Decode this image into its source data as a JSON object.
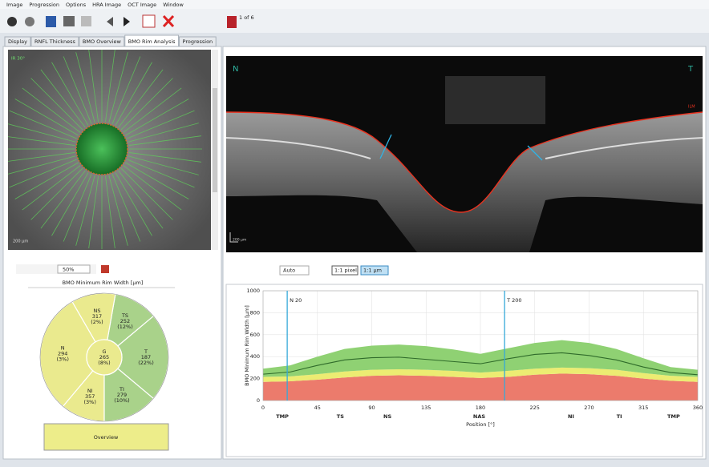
{
  "menu": [
    "Image",
    "Progression",
    "Options",
    "HRA Image",
    "OCT Image",
    "Window"
  ],
  "toolbar": {
    "page": "1 of 6"
  },
  "tabs": [
    "Display",
    "RNFL Thickness",
    "BMO Overview",
    "BMO Rim Analysis",
    "Progression"
  ],
  "active_tab": 3,
  "fundus": {
    "label": "IR 30°",
    "scale": "200 µm"
  },
  "fundus_zoom": "50%",
  "sectors": {
    "title": "BMO Minimum Rim Width [µm]",
    "items": [
      {
        "name": "T",
        "value": 187,
        "percentile_label": "(22%)",
        "color": "#a9d28a"
      },
      {
        "name": "TS",
        "value": 252,
        "percentile_label": "(12%)",
        "color": "#a9d28a"
      },
      {
        "name": "NS",
        "value": 317,
        "percentile_label": "(2%)",
        "color": "#eaea8e"
      },
      {
        "name": "N",
        "value": 294,
        "percentile_label": "(3%)",
        "color": "#eaea8e"
      },
      {
        "name": "NI",
        "value": 357,
        "percentile_label": "(3%)",
        "color": "#eaea8e"
      },
      {
        "name": "TI",
        "value": 279,
        "percentile_label": "(10%)",
        "color": "#a9d28a"
      }
    ],
    "global": {
      "name": "G",
      "value": 265,
      "percentile_label": "(8%)",
      "color": "#eaea8e"
    }
  },
  "overview_button": "Overview",
  "oct": {
    "nasal": "N",
    "temporal": "T",
    "layer": "ILM",
    "scale": "200 µm"
  },
  "oct_toolbar": {
    "zoom": "Auto",
    "pixel": "1:1 pixel",
    "micron": "1:1 µm"
  },
  "chart_data": {
    "type": "area",
    "ylabel": "BMO Minimum Rim Width [µm]",
    "xlabel": "Position [°]",
    "x": [
      0,
      22.5,
      45,
      67.5,
      90,
      112.5,
      135,
      157.5,
      180,
      202.5,
      225,
      247.5,
      270,
      292.5,
      315,
      337.5,
      360
    ],
    "xlim": [
      0,
      360
    ],
    "xticks": [
      0,
      45,
      90,
      135,
      180,
      225,
      270,
      315,
      360
    ],
    "ylim": [
      0,
      1000
    ],
    "yticks": [
      0,
      200,
      400,
      600,
      800,
      1000
    ],
    "grid": true,
    "series": [
      {
        "color": "#ec7b6c",
        "fill": true,
        "values": [
          170,
          175,
          190,
          210,
          225,
          230,
          225,
          215,
          205,
          215,
          235,
          245,
          240,
          225,
          200,
          180,
          170
        ]
      },
      {
        "color": "#ecec72",
        "fill": true,
        "values": [
          215,
          220,
          240,
          265,
          280,
          285,
          280,
          270,
          255,
          270,
          290,
          300,
          295,
          280,
          250,
          225,
          215
        ]
      },
      {
        "color": "#8fd173",
        "fill": true,
        "values": [
          290,
          320,
          400,
          470,
          500,
          510,
          495,
          465,
          425,
          475,
          525,
          550,
          525,
          470,
          385,
          305,
          280
        ]
      },
      {
        "color": "#2f6b2a",
        "fill": false,
        "values": [
          240,
          260,
          320,
          370,
          390,
          395,
          375,
          355,
          335,
          380,
          420,
          435,
          410,
          370,
          305,
          255,
          235
        ]
      }
    ],
    "markers": [
      {
        "label": "N 20",
        "value": 20
      },
      {
        "label": "T 200",
        "value": 200
      }
    ],
    "marker_color": "#35a9d8",
    "sector_labels": [
      {
        "label": "TMP",
        "value": 16
      },
      {
        "label": "TS",
        "value": 64
      },
      {
        "label": "NS",
        "value": 103
      },
      {
        "label": "NAS",
        "value": 179
      },
      {
        "label": "NI",
        "value": 255
      },
      {
        "label": "TI",
        "value": 295
      },
      {
        "label": "TMP",
        "value": 340
      }
    ]
  }
}
